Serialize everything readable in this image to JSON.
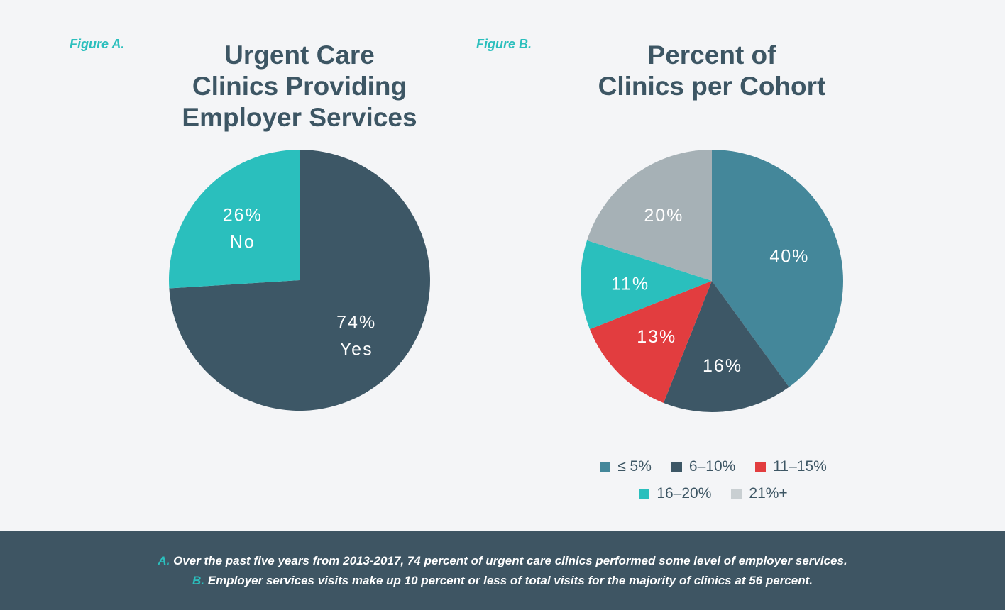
{
  "figure_a": {
    "label": "Figure A.",
    "title_lines": [
      "Urgent Care",
      "Clinics Providing",
      "Employer Services"
    ]
  },
  "figure_b": {
    "label": "Figure B.",
    "title_lines": [
      "Percent of",
      "Clinics per Cohort"
    ]
  },
  "chart_data": [
    {
      "type": "pie",
      "title": "Urgent Care Clinics Providing Employer Services",
      "slices": [
        {
          "name": "Yes",
          "value": 74,
          "label": "74%",
          "sublabel": "Yes",
          "color": "#3d5766"
        },
        {
          "name": "No",
          "value": 26,
          "label": "26%",
          "sublabel": "No",
          "color": "#2abfbd"
        }
      ]
    },
    {
      "type": "pie",
      "title": "Percent of Clinics per Cohort",
      "slices": [
        {
          "name": "≤ 5%",
          "value": 40,
          "label": "40%",
          "color": "#44879a"
        },
        {
          "name": "6–10%",
          "value": 16,
          "label": "16%",
          "color": "#3d5766"
        },
        {
          "name": "11–15%",
          "value": 13,
          "label": "13%",
          "color": "#e23d3f"
        },
        {
          "name": "16–20%",
          "value": 11,
          "label": "11%",
          "color": "#2abfbd"
        },
        {
          "name": "21%+",
          "value": 20,
          "label": "20%",
          "color": "#a6b1b6"
        }
      ],
      "legend": {
        "rows": [
          [
            {
              "label": "≤ 5%",
              "color": "#44879a"
            },
            {
              "label": "6–10%",
              "color": "#3d5766"
            },
            {
              "label": "11–15%",
              "color": "#e23d3f"
            }
          ],
          [
            {
              "label": "16–20%",
              "color": "#2abfbd"
            },
            {
              "label": "21%+",
              "color": "#c9cfd2"
            }
          ]
        ]
      }
    }
  ],
  "footer": {
    "line_a_letter": "A.",
    "line_a_text": "Over the past five years from 2013-2017, 74 percent of urgent care clinics performed some level of employer services.",
    "line_b_letter": "B.",
    "line_b_text": "Employer services visits make up 10 percent or less of total visits for the majority of clinics at 56 percent."
  }
}
